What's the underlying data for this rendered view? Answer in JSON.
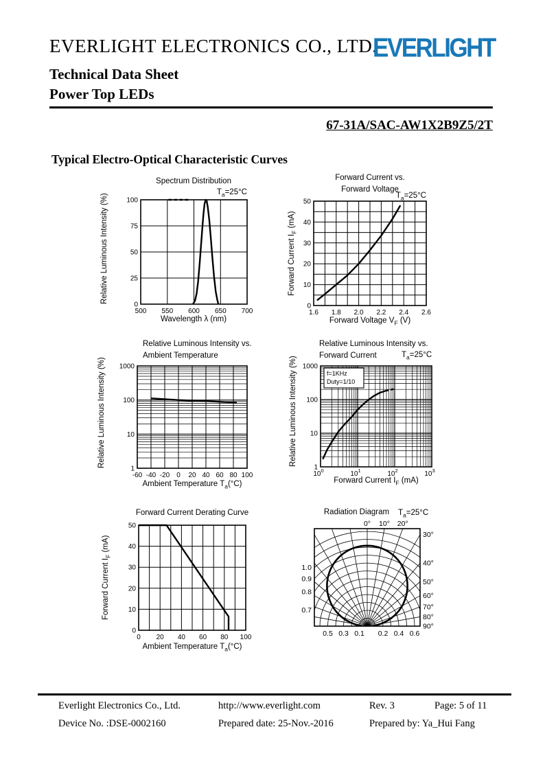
{
  "header": {
    "company": "EVERLIGHT ELECTRONICS CO., LTD.",
    "logo_text": "EVERLIGHT",
    "logo_color": "#1878b8",
    "doc_title": "Technical Data Sheet",
    "doc_subtitle": "Power Top LEDs",
    "part_number": "67-31A/SAC-AW1X2B9Z5/2T"
  },
  "section_title": "Typical Electro-Optical Characteristic Curves",
  "chart_data": [
    {
      "key": "spectrum",
      "type": "line",
      "title_lines": [
        "Spectrum Distribution"
      ],
      "annotation": {
        "pre": "T",
        "sub": "a",
        "post": "=25°C"
      },
      "xlabel": {
        "pre": "Wavelength λ (nm)",
        "sub": "",
        "post": ""
      },
      "ylabel": {
        "pre": "Relative Luminous Intensity  (%)",
        "sub": "",
        "post": ""
      },
      "xscale": "linear",
      "yscale": "linear",
      "xlim": [
        500,
        700
      ],
      "ylim": [
        0,
        100
      ],
      "xgrid_step": 50,
      "ygrid_step": 25,
      "xtick_vals": [
        500,
        550,
        600,
        650,
        700
      ],
      "xtick_labels": [
        "500",
        "550",
        "600",
        "650",
        "700"
      ],
      "ytick_vals": [
        0,
        25,
        50,
        75,
        100
      ],
      "ytick_labels": [
        "0",
        "25",
        "50",
        "75",
        "100"
      ],
      "curves": [
        {
          "dash": false,
          "points": [
            [
              598,
              0
            ],
            [
              602,
              3
            ],
            [
              605,
              10
            ],
            [
              608,
              22
            ],
            [
              611,
              40
            ],
            [
              614,
              60
            ],
            [
              616,
              74
            ],
            [
              618,
              87
            ],
            [
              620,
              96
            ],
            [
              622,
              100
            ],
            [
              624,
              99
            ],
            [
              626,
              93
            ],
            [
              629,
              80
            ],
            [
              632,
              62
            ],
            [
              635,
              43
            ],
            [
              638,
              26
            ],
            [
              641,
              12
            ],
            [
              644,
              4
            ],
            [
              646,
              0
            ]
          ]
        },
        {
          "dash": true,
          "points": [
            [
              552,
              100
            ],
            [
              592,
              100
            ]
          ]
        }
      ]
    },
    {
      "key": "vf",
      "type": "line",
      "title_lines": [
        "Forward Current vs.",
        "Forward Voltage"
      ],
      "annotation": {
        "pre": "T",
        "sub": "a",
        "post": "=25°C"
      },
      "xlabel": {
        "pre": "Forward Voltage  V",
        "sub": "F",
        "post": " (V)"
      },
      "ylabel": {
        "pre": "Forward Current I",
        "sub": "F",
        "post": " (mA)"
      },
      "xscale": "linear",
      "yscale": "linear",
      "xlim": [
        1.6,
        2.6
      ],
      "ylim": [
        0,
        50
      ],
      "xgrid_step": 0.1,
      "ygrid_step": 5,
      "xtick_vals": [
        1.6,
        1.8,
        2.0,
        2.2,
        2.4,
        2.6
      ],
      "xtick_labels": [
        "1.6",
        "1.8",
        "2.0",
        "2.2",
        "2.4",
        "2.6"
      ],
      "ytick_vals": [
        0,
        10,
        20,
        30,
        40,
        50
      ],
      "ytick_labels": [
        "0",
        "10",
        "20",
        "30",
        "40",
        "50"
      ],
      "curves": [
        {
          "dash": false,
          "points": [
            [
              1.63,
              2.5
            ],
            [
              1.7,
              5.5
            ],
            [
              1.8,
              10
            ],
            [
              1.9,
              14.5
            ],
            [
              2.0,
              20
            ],
            [
              2.1,
              26.5
            ],
            [
              2.2,
              33.5
            ],
            [
              2.3,
              41.5
            ],
            [
              2.37,
              48
            ]
          ]
        }
      ]
    },
    {
      "key": "temp",
      "type": "line",
      "title_lines": [
        "Relative Luminous Intensity vs.",
        "Ambient Temperature"
      ],
      "xlabel": {
        "pre": "Ambient Temperature T",
        "sub": "a",
        "post": "(°C)"
      },
      "ylabel": {
        "pre": "Relative Luminous Intensity  (%)",
        "sub": "",
        "post": ""
      },
      "xscale": "linear",
      "yscale": "log",
      "xlim": [
        -60,
        100
      ],
      "ylim": [
        1,
        1000
      ],
      "xgrid_step": 20,
      "xtick_vals": [
        -60,
        -40,
        -20,
        0,
        20,
        40,
        60,
        80,
        100
      ],
      "xtick_labels": [
        "-60",
        "-40",
        "-20",
        "0",
        "20",
        "40",
        "60",
        "80",
        "100"
      ],
      "ytick_vals": [
        1,
        10,
        100,
        1000
      ],
      "ytick_labels": [
        "1",
        "10",
        "100",
        "1000"
      ],
      "curves": [
        {
          "dash": false,
          "points": [
            [
              -40,
              112
            ],
            [
              -20,
              106
            ],
            [
              0,
              100
            ],
            [
              20,
              96
            ],
            [
              40,
              93
            ],
            [
              60,
              89
            ],
            [
              85,
              84
            ]
          ]
        }
      ]
    },
    {
      "key": "ifi",
      "type": "line",
      "title_lines": [
        "Relative Luminous Intensity vs.",
        "Forward Current"
      ],
      "annotation": {
        "pre": "T",
        "sub": "a",
        "post": "=25°C"
      },
      "legend_lines": [
        "f=1KHz",
        "Duty=1/10"
      ],
      "xlabel": {
        "pre": "Forward Current  I",
        "sub": "F",
        "post": " (mA)"
      },
      "ylabel": {
        "pre": "Relative Luminous Intensity  (%)",
        "sub": "",
        "post": ""
      },
      "xscale": "log",
      "yscale": "log",
      "xlim": [
        1,
        1000
      ],
      "ylim": [
        1,
        1000
      ],
      "xtick_vals": [
        1,
        10,
        100,
        1000
      ],
      "xtick_style": "pow10",
      "ytick_vals": [
        1,
        10,
        100,
        1000
      ],
      "ytick_labels": [
        "1",
        "10",
        "100",
        "1000"
      ],
      "curves": [
        {
          "dash": false,
          "points": [
            [
              1.15,
              1.7
            ],
            [
              1.5,
              3.2
            ],
            [
              2,
              5.5
            ],
            [
              3,
              11
            ],
            [
              4,
              16
            ],
            [
              5,
              21
            ],
            [
              7,
              31
            ],
            [
              10,
              50
            ],
            [
              14,
              72
            ],
            [
              20,
              100
            ],
            [
              28,
              130
            ],
            [
              40,
              160
            ],
            [
              55,
              180
            ]
          ]
        },
        {
          "dash": true,
          "points": [
            [
              55,
              180
            ],
            [
              75,
              195
            ],
            [
              95,
              205
            ]
          ]
        }
      ]
    },
    {
      "key": "derating",
      "type": "line",
      "title_lines": [
        "Forward Current Derating Curve"
      ],
      "xlabel": {
        "pre": "Ambient Temperature T",
        "sub": "a",
        "post": "(°C)"
      },
      "ylabel": {
        "pre": "Forward Current I",
        "sub": "F",
        "post": " (mA)"
      },
      "xscale": "linear",
      "yscale": "linear",
      "xlim": [
        0,
        100
      ],
      "ylim": [
        0,
        50
      ],
      "xgrid_step": 10,
      "ygrid_step": 10,
      "xtick_vals": [
        0,
        20,
        40,
        60,
        80,
        100
      ],
      "xtick_labels": [
        "0",
        "20",
        "40",
        "60",
        "80",
        "100"
      ],
      "ytick_vals": [
        0,
        10,
        20,
        30,
        40,
        50
      ],
      "ytick_labels": [
        "0",
        "10",
        "20",
        "30",
        "40",
        "50"
      ],
      "curves": [
        {
          "dash": false,
          "points": [
            [
              0,
              50
            ],
            [
              26,
              50
            ],
            [
              84,
              6.5
            ],
            [
              84,
              0
            ]
          ]
        }
      ]
    },
    {
      "key": "radiation",
      "type": "polar",
      "title_lines": [
        "Radiation Diagram"
      ],
      "annotation": {
        "pre": "T",
        "sub": "a",
        "post": "=25°C"
      },
      "ring_step": 0.1,
      "ring_max": 1.2,
      "angle_step_deg": 10,
      "half_width_units": 0.67,
      "top_angle_labels": [
        {
          "deg": 0,
          "text": "0°"
        },
        {
          "deg": 10,
          "text": "10°"
        },
        {
          "deg": 20,
          "text": "20°"
        }
      ],
      "right_angle_labels": [
        {
          "deg": 30,
          "text": "30°"
        },
        {
          "deg": 40,
          "text": "40°"
        },
        {
          "deg": 50,
          "text": "50°"
        },
        {
          "deg": 60,
          "text": "60°"
        },
        {
          "deg": 70,
          "text": "70°"
        },
        {
          "deg": 80,
          "text": "80°"
        },
        {
          "deg": 90,
          "text": "90°"
        }
      ],
      "left_radius_labels": [
        {
          "r": 1.0,
          "text": "1.0"
        },
        {
          "r": 0.9,
          "text": "0.9"
        },
        {
          "r": 0.8,
          "text": "0.8"
        },
        {
          "r": 0.7,
          "text": "0.7"
        }
      ],
      "bottom_radius_labels": [
        {
          "x": -0.5,
          "text": "0.5"
        },
        {
          "x": -0.3,
          "text": "0.3"
        },
        {
          "x": -0.1,
          "text": "0.1"
        },
        {
          "x": 0.2,
          "text": "0.2"
        },
        {
          "x": 0.4,
          "text": "0.4"
        },
        {
          "x": 0.6,
          "text": "0.6"
        }
      ],
      "pattern": {
        "shape": "cosine",
        "scale": 1.02,
        "theta_max": 86
      }
    }
  ],
  "footer": {
    "company": "Everlight Electronics Co., Ltd.",
    "website": "http://www.everlight.com",
    "rev": "Rev. 3",
    "page": "Page: 5 of 11",
    "device_no": "Device No. :DSE-0002160",
    "prepared_date": "Prepared date: 25-Nov.-2016",
    "prepared_by": "Prepared by: Ya_Hui Fang"
  }
}
